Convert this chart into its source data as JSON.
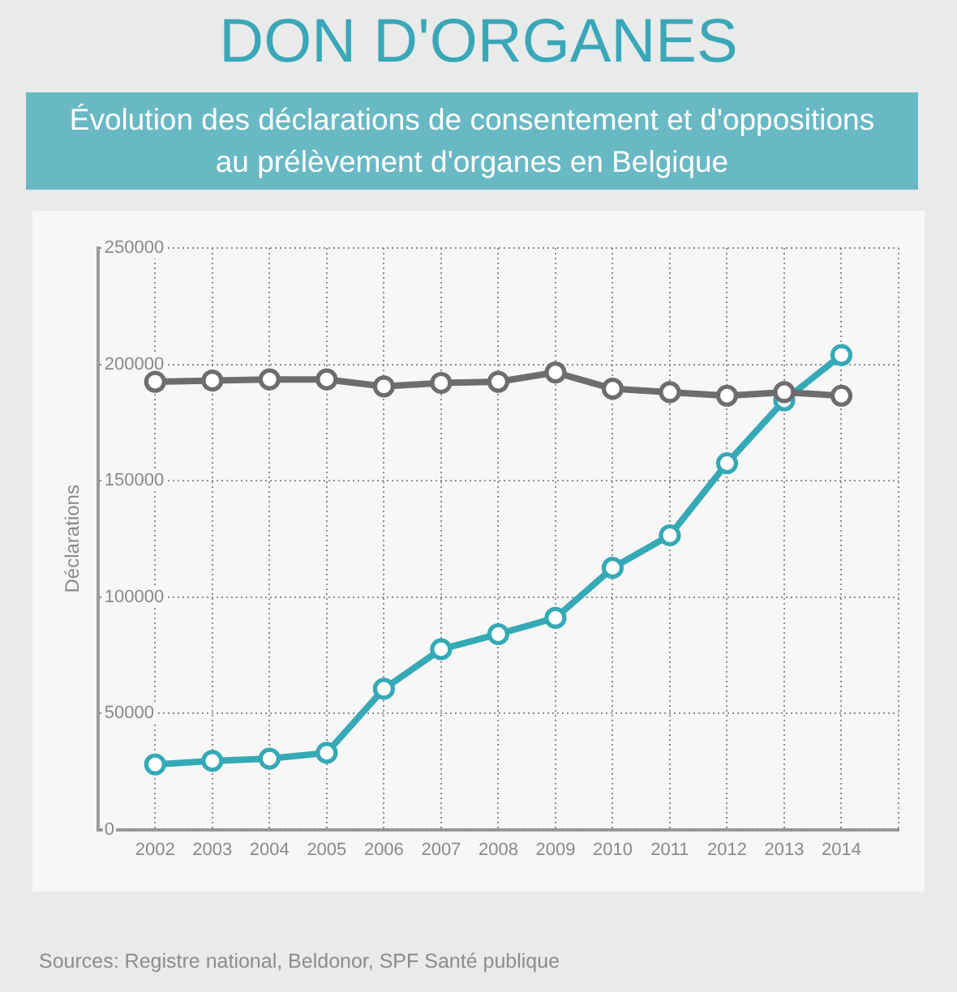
{
  "chart_data": {
    "type": "line",
    "title": "DON D'ORGANES",
    "subtitle": "Évolution des déclarations de consentement et d'oppositions au prélèvement d'organes en Belgique",
    "ylabel": "Déclarations",
    "annotations": [
      "Sources: Registre national, Beldonor, SPF Santé publique"
    ],
    "categories": [
      "2002",
      "2003",
      "2004",
      "2005",
      "2006",
      "2007",
      "2008",
      "2009",
      "2010",
      "2011",
      "2012",
      "2013",
      "2014"
    ],
    "series": [
      {
        "color": "#6d6d6d",
        "values": [
          192500,
          193000,
          193500,
          193500,
          190500,
          192000,
          192500,
          196500,
          189500,
          188000,
          186500,
          188000,
          186500
        ]
      },
      {
        "color": "#35a9b6",
        "values": [
          28000,
          29500,
          30500,
          33000,
          60500,
          77500,
          84000,
          91000,
          112500,
          126500,
          157500,
          184500,
          204000
        ]
      }
    ],
    "ylim": [
      0,
      250000
    ],
    "yticks": [
      0,
      50000,
      100000,
      150000,
      200000,
      250000
    ],
    "grid": true,
    "legend": false,
    "marker": "circle",
    "line_style": "solid"
  }
}
